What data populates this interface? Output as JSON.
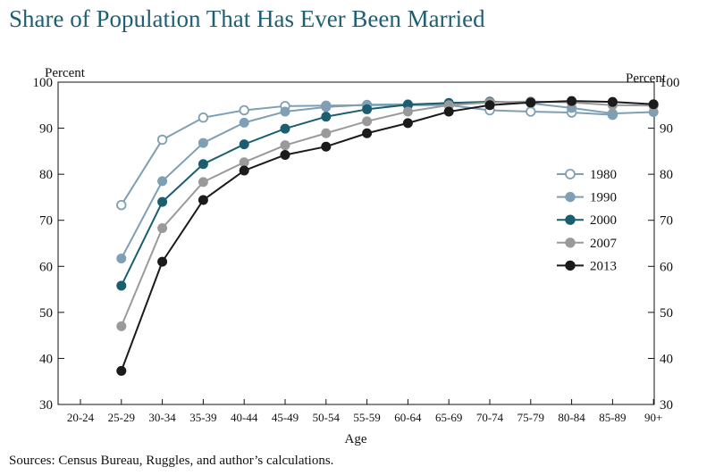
{
  "title": "Share of Population That Has Ever Been Married",
  "source": "Sources: Census Bureau, Ruggles, and author’s calculations.",
  "chart_data": {
    "type": "line",
    "title": "Share of Population That Has Ever Been Married",
    "xlabel": "Age",
    "ylabel_left": "Percent",
    "ylabel_right": "Percent",
    "ylim": [
      30,
      100
    ],
    "yticks": [
      30,
      40,
      50,
      60,
      70,
      80,
      90,
      100
    ],
    "legend_position": "right",
    "grid": false,
    "categories": [
      "20-24",
      "25-29",
      "30-34",
      "35-39",
      "40-44",
      "45-49",
      "50-54",
      "55-59",
      "60-64",
      "65-69",
      "70-74",
      "75-79",
      "80-84",
      "85-89",
      "90+"
    ],
    "series": [
      {
        "name": "1980",
        "color": "#7e9fb4",
        "marker": "open",
        "values": [
          null,
          73.3,
          87.5,
          92.3,
          93.9,
          94.8,
          94.9,
          95.0,
          95.0,
          95.0,
          93.9,
          93.6,
          93.4,
          92.9,
          null
        ]
      },
      {
        "name": "1990",
        "color": "#7e9fb4",
        "marker": "filled",
        "values": [
          null,
          61.7,
          78.5,
          86.8,
          91.2,
          93.6,
          94.6,
          95.1,
          95.2,
          95.4,
          95.8,
          95.4,
          94.4,
          93.2,
          93.5
        ]
      },
      {
        "name": "2000",
        "color": "#1a5e70",
        "marker": "filled",
        "values": [
          null,
          55.8,
          74.0,
          82.2,
          86.5,
          89.9,
          92.5,
          94.1,
          95.1,
          95.5,
          95.7,
          95.6,
          null,
          null,
          null
        ]
      },
      {
        "name": "2007",
        "color": "#9a9a9a",
        "marker": "filled",
        "values": [
          null,
          47.0,
          68.3,
          78.3,
          82.6,
          86.3,
          88.9,
          91.5,
          93.6,
          95.0,
          95.6,
          95.8,
          95.6,
          95.0,
          94.9
        ]
      },
      {
        "name": "2013",
        "color": "#1b1b1b",
        "marker": "filled",
        "values": [
          null,
          37.3,
          61.0,
          74.4,
          80.8,
          84.2,
          86.0,
          88.9,
          91.1,
          93.6,
          95.0,
          95.6,
          95.9,
          95.7,
          95.2
        ]
      }
    ]
  }
}
